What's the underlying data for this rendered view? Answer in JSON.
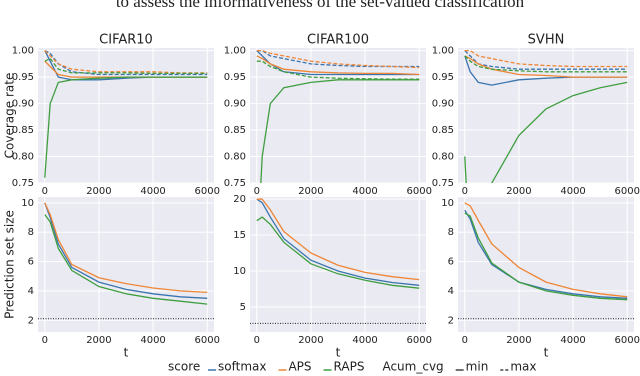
{
  "caption_fragment": "to assess the informativeness of the set-valued classification",
  "chart_data": [
    {
      "type": "line",
      "title": "CIFAR10",
      "ylabel": "Coverage rate",
      "x": [
        0,
        200,
        500,
        1000,
        2000,
        3000,
        4000,
        5000,
        6000
      ],
      "xlim": [
        -250,
        6250
      ],
      "xticks": [
        0,
        2000,
        4000,
        6000
      ],
      "ylim": [
        0.75,
        1.005
      ],
      "yticks": [
        0.75,
        {
          "value": 0.8,
          "label": "0.80"
        },
        0.85,
        {
          "value": 0.9,
          "label": "0.90"
        },
        0.95,
        {
          "value": 1.0,
          "label": "1.00"
        }
      ],
      "grid": true,
      "series": [
        {
          "color": "#3b75af",
          "dashed": false,
          "values": [
            1.0,
            0.98,
            0.95,
            0.945,
            0.945,
            0.948,
            0.95,
            0.95,
            0.95
          ]
        },
        {
          "color": "#3b75af",
          "dashed": true,
          "values": [
            1.0,
            0.995,
            0.975,
            0.96,
            0.955,
            0.955,
            0.955,
            0.955,
            0.955
          ]
        },
        {
          "color": "#ef8636",
          "dashed": false,
          "values": [
            0.98,
            0.97,
            0.955,
            0.95,
            0.95,
            0.95,
            0.95,
            0.95,
            0.95
          ]
        },
        {
          "color": "#ef8636",
          "dashed": true,
          "values": [
            1.0,
            0.99,
            0.975,
            0.965,
            0.96,
            0.96,
            0.96,
            0.958,
            0.958
          ]
        },
        {
          "color": "#3f9e3f",
          "dashed": false,
          "values": [
            0.76,
            0.9,
            0.94,
            0.945,
            0.948,
            0.95,
            0.95,
            0.95,
            0.95
          ]
        },
        {
          "color": "#3f9e3f",
          "dashed": true,
          "values": [
            0.98,
            0.985,
            0.965,
            0.958,
            0.958,
            0.958,
            0.957,
            0.957,
            0.957
          ]
        }
      ]
    },
    {
      "type": "line",
      "title": "CIFAR100",
      "x": [
        0,
        200,
        500,
        1000,
        2000,
        3000,
        4000,
        5000,
        6000
      ],
      "xlim": [
        -250,
        6250
      ],
      "xticks": [
        0,
        2000,
        4000,
        6000
      ],
      "ylim": [
        0.75,
        1.005
      ],
      "yticks": [
        0.75,
        {
          "value": 0.8,
          "label": "0.80"
        },
        0.85,
        {
          "value": 0.9,
          "label": "0.90"
        },
        0.95,
        {
          "value": 1.0,
          "label": "1.00"
        }
      ],
      "grid": true,
      "series": [
        {
          "color": "#3b75af",
          "dashed": false,
          "values": [
            1.0,
            0.99,
            0.975,
            0.96,
            0.955,
            0.955,
            0.955,
            0.955,
            0.955
          ]
        },
        {
          "color": "#3b75af",
          "dashed": true,
          "values": [
            1.0,
            1.0,
            0.99,
            0.985,
            0.975,
            0.972,
            0.97,
            0.97,
            0.97
          ]
        },
        {
          "color": "#ef8636",
          "dashed": false,
          "values": [
            0.99,
            0.985,
            0.975,
            0.965,
            0.96,
            0.958,
            0.957,
            0.957,
            0.955
          ]
        },
        {
          "color": "#ef8636",
          "dashed": true,
          "values": [
            1.0,
            1.0,
            0.995,
            0.99,
            0.98,
            0.975,
            0.972,
            0.97,
            0.968
          ]
        },
        {
          "color": "#3f9e3f",
          "dashed": false,
          "values": [
            0.6,
            0.8,
            0.9,
            0.93,
            0.94,
            0.945,
            0.945,
            0.945,
            0.945
          ]
        },
        {
          "color": "#3f9e3f",
          "dashed": true,
          "values": [
            0.98,
            0.98,
            0.97,
            0.96,
            0.95,
            0.948,
            0.947,
            0.946,
            0.946
          ]
        }
      ]
    },
    {
      "type": "line",
      "title": "SVHN",
      "x": [
        0,
        200,
        500,
        1000,
        2000,
        3000,
        4000,
        5000,
        6000
      ],
      "xlim": [
        -250,
        6250
      ],
      "xticks": [
        0,
        2000,
        4000,
        6000
      ],
      "ylim": [
        0.75,
        1.005
      ],
      "yticks": [
        0.75,
        {
          "value": 0.8,
          "label": "0.80"
        },
        0.85,
        {
          "value": 0.9,
          "label": "0.90"
        },
        0.95,
        {
          "value": 1.0,
          "label": "1.00"
        }
      ],
      "grid": true,
      "series": [
        {
          "color": "#3b75af",
          "dashed": false,
          "values": [
            0.99,
            0.96,
            0.94,
            0.935,
            0.945,
            0.948,
            0.95,
            0.95,
            0.95
          ]
        },
        {
          "color": "#3b75af",
          "dashed": true,
          "values": [
            1.0,
            0.99,
            0.975,
            0.97,
            0.965,
            0.965,
            0.965,
            0.965,
            0.965
          ]
        },
        {
          "color": "#ef8636",
          "dashed": false,
          "values": [
            0.99,
            0.985,
            0.975,
            0.965,
            0.955,
            0.953,
            0.95,
            0.95,
            0.95
          ]
        },
        {
          "color": "#ef8636",
          "dashed": true,
          "values": [
            1.0,
            1.0,
            0.99,
            0.985,
            0.975,
            0.972,
            0.97,
            0.97,
            0.97
          ]
        },
        {
          "color": "#3f9e3f",
          "dashed": false,
          "values": [
            0.8,
            0.6,
            0.66,
            0.75,
            0.84,
            0.89,
            0.915,
            0.93,
            0.94
          ]
        },
        {
          "color": "#3f9e3f",
          "dashed": true,
          "values": [
            0.99,
            0.98,
            0.97,
            0.965,
            0.962,
            0.96,
            0.96,
            0.96,
            0.96
          ]
        }
      ]
    },
    {
      "type": "line",
      "ylabel": "Prediction set size",
      "xlabel": "t",
      "x": [
        0,
        200,
        500,
        1000,
        2000,
        3000,
        4000,
        5000,
        6000
      ],
      "xlim": [
        -250,
        6250
      ],
      "xticks": [
        0,
        2000,
        4000,
        6000
      ],
      "ylim": [
        1.2,
        10.4
      ],
      "yticks": [
        2,
        4,
        6,
        8,
        10
      ],
      "grid": true,
      "hline": 2.1,
      "series": [
        {
          "color": "#3b75af",
          "dashed": false,
          "values": [
            10,
            9.0,
            7.2,
            5.6,
            4.6,
            4.1,
            3.8,
            3.6,
            3.5
          ]
        },
        {
          "color": "#ef8636",
          "dashed": false,
          "values": [
            10,
            9.2,
            7.5,
            5.8,
            4.9,
            4.5,
            4.2,
            4.0,
            3.9
          ]
        },
        {
          "color": "#3f9e3f",
          "dashed": false,
          "values": [
            9.2,
            8.7,
            6.9,
            5.4,
            4.3,
            3.8,
            3.5,
            3.3,
            3.1
          ]
        }
      ]
    },
    {
      "type": "line",
      "xlabel": "t",
      "x": [
        0,
        200,
        500,
        1000,
        2000,
        3000,
        4000,
        5000,
        6000
      ],
      "xlim": [
        -250,
        6250
      ],
      "xticks": [
        0,
        2000,
        4000,
        6000
      ],
      "ylim": [
        1.5,
        20.3
      ],
      "yticks": [
        5,
        10,
        15,
        20
      ],
      "grid": true,
      "hline": 2.7,
      "series": [
        {
          "color": "#3b75af",
          "dashed": false,
          "values": [
            20,
            19.5,
            17.5,
            14.5,
            11.5,
            10,
            9,
            8.4,
            8
          ]
        },
        {
          "color": "#ef8636",
          "dashed": false,
          "values": [
            20,
            20,
            18.5,
            15.5,
            12.5,
            10.8,
            9.8,
            9.2,
            8.8
          ]
        },
        {
          "color": "#3f9e3f",
          "dashed": false,
          "values": [
            17,
            17.5,
            16.5,
            14,
            11,
            9.6,
            8.7,
            8.0,
            7.6
          ]
        }
      ]
    },
    {
      "type": "line",
      "xlabel": "t",
      "x": [
        0,
        200,
        500,
        1000,
        2000,
        3000,
        4000,
        5000,
        6000
      ],
      "xlim": [
        -250,
        6250
      ],
      "xticks": [
        0,
        2000,
        4000,
        6000
      ],
      "ylim": [
        1.2,
        10.4
      ],
      "yticks": [
        2,
        4,
        6,
        8,
        10
      ],
      "grid": true,
      "hline": 2.1,
      "series": [
        {
          "color": "#3b75af",
          "dashed": false,
          "values": [
            9.5,
            8.9,
            7.3,
            5.8,
            4.6,
            4.1,
            3.8,
            3.6,
            3.5
          ]
        },
        {
          "color": "#ef8636",
          "dashed": false,
          "values": [
            10,
            9.8,
            8.8,
            7.2,
            5.6,
            4.6,
            4.1,
            3.8,
            3.6
          ]
        },
        {
          "color": "#3f9e3f",
          "dashed": false,
          "values": [
            9.3,
            9.1,
            7.6,
            5.9,
            4.6,
            4.0,
            3.7,
            3.5,
            3.4
          ]
        }
      ]
    }
  ],
  "legend": {
    "title": "score",
    "items": [
      {
        "name": "softmax",
        "color": "#3b75af"
      },
      {
        "name": "APS",
        "color": "#ef8636"
      },
      {
        "name": "RAPS",
        "color": "#3f9e3f"
      }
    ],
    "style_title": "Acum_cvg",
    "styles": [
      {
        "name": "min",
        "dashed": false
      },
      {
        "name": "max",
        "dashed": true
      }
    ]
  }
}
